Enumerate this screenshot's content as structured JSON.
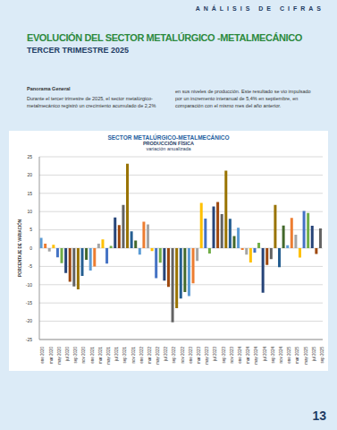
{
  "header": {
    "section": "ANÁLISIS DE CIFRAS",
    "title": "EVOLUCIÓN DEL SECTOR METALÚRGICO -METALMECÁNICO",
    "subtitle": "TERCER TRIMESTRE 2025"
  },
  "body": {
    "heading": "Panorama General",
    "columns": [
      "Durante el tercer trimestre de 2025, el sector metalúrgico-metalmecánico registró un crecimiento acumulado de 2,2%",
      "en sus niveles de producción. Este resultado se vio impulsado por un incremento interanual de 5,4% en septiembre, en comparación con el mismo mes del año anterior."
    ]
  },
  "chart_data": {
    "type": "bar",
    "title": "SECTOR METALÚRGICO-METALMECÁNICO",
    "subtitle": [
      "PRODUCCIÓN FÍSICA",
      "variación anualizada"
    ],
    "y_label": "PORCENTAJE DE VARIACIÓN",
    "categories": [
      "ene 2020",
      null,
      "mar 2020",
      null,
      "may 2020",
      null,
      "jul 2020",
      null,
      "sep 2020",
      null,
      "nov 2020",
      null,
      "ene 2021",
      null,
      "mar 2021",
      null,
      "may 2021",
      null,
      "jul 2021",
      null,
      "sep 2021",
      null,
      "nov 2021",
      null,
      "ene 2022",
      null,
      "mar 2022",
      null,
      "may 2022",
      null,
      "jul 2022",
      null,
      "sep 2022",
      null,
      "nov 2022",
      null,
      "ene 2023",
      null,
      "mar 2023",
      null,
      "may 2023",
      null,
      "jul 2023",
      null,
      "sep 2023",
      null,
      "nov 2023",
      null,
      "ene 2024",
      null,
      "mar 2024",
      null,
      "may 2024",
      null,
      "jul 2024",
      null,
      "sep 2024",
      null,
      "nov 2024",
      null,
      "ene 2025",
      null,
      "mar 2025",
      null,
      "may 2025",
      null,
      "jul 2025",
      null,
      "sep 2025"
    ],
    "values": [
      2.8,
      1.2,
      -0.9,
      0.9,
      -2.5,
      -4.1,
      -6.8,
      -9.2,
      -10.5,
      -11.3,
      -7.6,
      -3.2,
      -6.1,
      -5.0,
      1.2,
      2.4,
      -4.2,
      0.6,
      8.4,
      6.3,
      11.8,
      23.1,
      4.6,
      2.1,
      -1.8,
      7.2,
      6.5,
      -0.8,
      -8.2,
      -4.0,
      -8.9,
      -10.6,
      -20.3,
      -16.4,
      -13.8,
      -12.0,
      -13.1,
      -9.6,
      -3.5,
      12.4,
      8.1,
      -1.5,
      11.4,
      12.6,
      9.3,
      21.2,
      8.0,
      3.3,
      5.6,
      -0.5,
      -1.8,
      -3.9,
      -1.2,
      1.5,
      -12.2,
      -4.6,
      -3.0,
      11.8,
      -5.2,
      6.2,
      0.8,
      8.3,
      3.7,
      -2.6,
      10.2,
      9.6,
      6.1,
      -1.6,
      5.4
    ],
    "colors": [
      "#5b9bd5",
      "#ed7d31",
      "#a5a5a5",
      "#ffc000",
      "#4472c4",
      "#70ad47",
      "#264478",
      "#9e480e",
      "#636363",
      "#997300",
      "#255e91",
      "#43682b",
      "#5b9bd5",
      "#ed7d31",
      "#a5a5a5",
      "#ffc000",
      "#4472c4",
      "#70ad47",
      "#264478",
      "#9e480e",
      "#636363",
      "#997300",
      "#255e91",
      "#43682b",
      "#5b9bd5",
      "#ed7d31",
      "#a5a5a5",
      "#ffc000",
      "#4472c4",
      "#70ad47",
      "#264478",
      "#9e480e",
      "#636363",
      "#997300",
      "#255e91",
      "#43682b",
      "#5b9bd5",
      "#ed7d31",
      "#a5a5a5",
      "#ffc000",
      "#4472c4",
      "#70ad47",
      "#264478",
      "#9e480e",
      "#636363",
      "#997300",
      "#255e91",
      "#43682b",
      "#5b9bd5",
      "#ed7d31",
      "#a5a5a5",
      "#ffc000",
      "#4472c4",
      "#70ad47",
      "#264478",
      "#9e480e",
      "#636363",
      "#997300",
      "#255e91",
      "#43682b",
      "#5b9bd5",
      "#ed7d31",
      "#a5a5a5",
      "#ffc000",
      "#4472c4",
      "#70ad47",
      "#264478",
      "#9e480e",
      "#636363"
    ],
    "ylim": [
      -25,
      25
    ],
    "yticks": [
      -25,
      -20,
      -15,
      -10,
      -5,
      0,
      5,
      10,
      15,
      20,
      25
    ],
    "grid": true
  },
  "footer": {
    "page": "13"
  }
}
